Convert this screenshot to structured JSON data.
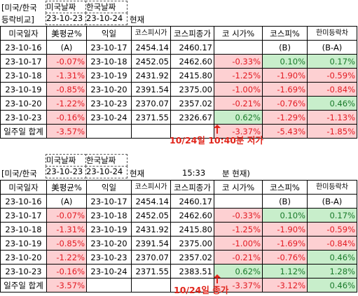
{
  "top": {
    "label_col": "[미국/한국",
    "label_col2": "등락비교]",
    "date_us_header": "미국날짜",
    "date_kr_header": "한국날짜",
    "date_us": "23-10-23",
    "date_kr": "23-10-24",
    "now_label": "현재",
    "headers": [
      "미국일자",
      "美평균%",
      "익일",
      "코스피시가",
      "코스피종가",
      "코 시가%",
      "코스피%",
      "한미등락차"
    ],
    "subrow": [
      "23-10-16",
      "(A)",
      "23-10-17",
      "2454.14",
      "2460.17",
      "",
      "(B)",
      "(B-A)"
    ],
    "rows": [
      [
        "23-10-17",
        "-0.07%",
        "23-10-18",
        "2452.05",
        "2462.60",
        "-0.33%",
        "0.10%",
        "0.17%"
      ],
      [
        "23-10-18",
        "-1.31%",
        "23-10-19",
        "2431.92",
        "2415.80",
        "-1.25%",
        "-1.90%",
        "-0.59%"
      ],
      [
        "23-10-19",
        "-0.85%",
        "23-10-20",
        "2391.54",
        "2375.00",
        "-1.00%",
        "-1.69%",
        "-0.84%"
      ],
      [
        "23-10-20",
        "-1.22%",
        "23-10-23",
        "2370.07",
        "2357.02",
        "-0.21%",
        "-0.76%",
        "0.46%"
      ],
      [
        "23-10-23",
        "-0.16%",
        "23-10-24",
        "2371.55",
        "2326.67",
        "0.62%",
        "-1.29%",
        "-1.13%"
      ]
    ],
    "total": [
      "일주일 합계",
      "-3.57%",
      "",
      "",
      "",
      "-3.37%",
      "-5.43%",
      "-1.85%"
    ],
    "annotation": "10/24일 10:40분 저가"
  },
  "bottom": {
    "date_us_header": "미국날짜",
    "date_kr_header": "한국날짜",
    "label_col": "[미국/한국",
    "date_us": "23-10-23",
    "date_kr": "23-10-24",
    "now_label": "현재",
    "time": "15:33",
    "time_suffix": "분 현재)",
    "headers": [
      "미국일자",
      "美평균%",
      "익일",
      "코스피시가",
      "코스피종가",
      "코 시가%",
      "코스피%",
      "한미등락차"
    ],
    "subrow": [
      "23-10-16",
      "(A)",
      "23-10-17",
      "2454.14",
      "2460.17",
      "",
      "(B)",
      "(B-A)"
    ],
    "rows": [
      [
        "23-10-17",
        "-0.07%",
        "23-10-18",
        "2452.05",
        "2462.60",
        "-0.33%",
        "0.10%",
        "0.17%"
      ],
      [
        "23-10-18",
        "-1.31%",
        "23-10-19",
        "2431.92",
        "2415.80",
        "-1.25%",
        "-1.90%",
        "-0.59%"
      ],
      [
        "23-10-19",
        "-0.85%",
        "23-10-20",
        "2391.54",
        "2375.00",
        "-1.00%",
        "-1.69%",
        "-0.84%"
      ],
      [
        "23-10-20",
        "-1.22%",
        "23-10-23",
        "2370.07",
        "2357.02",
        "-0.21%",
        "-0.76%",
        "0.46%"
      ],
      [
        "23-10-23",
        "-0.16%",
        "23-10-24",
        "2371.55",
        "2383.51",
        "0.62%",
        "1.12%",
        "1.28%"
      ]
    ],
    "total": [
      "일주일 합계",
      "-3.57%",
      "",
      "",
      "",
      "-3.37%",
      "-3.12%",
      "0.46%"
    ],
    "annotation": "10/24일 종가"
  }
}
